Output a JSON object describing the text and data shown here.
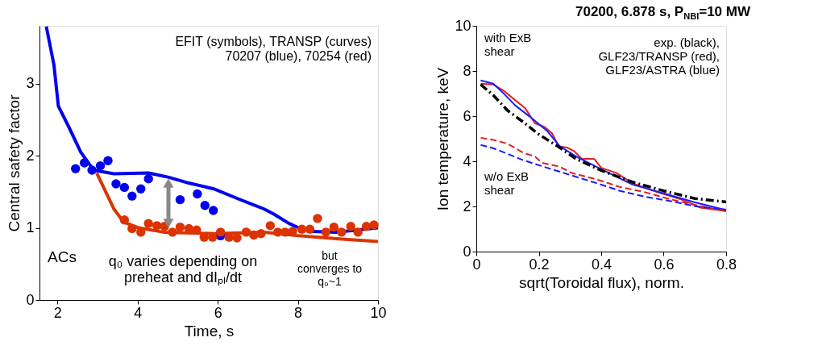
{
  "chart_data": [
    {
      "type": "line",
      "xlabel": "Time, s",
      "ylabel": "Central safety factor",
      "xlim": [
        1.55,
        10
      ],
      "ylim": [
        0,
        3.8
      ],
      "xticks": [
        2,
        4,
        6,
        8,
        10
      ],
      "yticks": [
        0,
        1,
        2,
        3
      ],
      "grid": false,
      "annotations": [
        "EFIT (symbols), TRANSP (curves)\n70207 (blue), 70254 (red)",
        "ACs",
        "q₀ varies depending on\npreheat and dIₚₗ/dt",
        "but\nconverges to\nq₀~1"
      ],
      "series": [
        {
          "type": "line",
          "color": "#0000ee",
          "x": [
            1.72,
            1.91,
            2.02,
            2.28,
            2.58,
            2.9,
            3.41,
            4.27,
            4.78,
            5.28,
            5.9,
            6.52,
            7.16,
            7.4,
            7.78,
            8.02,
            8.34,
            8.96,
            10
          ],
          "values": [
            3.79,
            3.26,
            2.69,
            2.4,
            2.05,
            1.8,
            1.75,
            1.76,
            1.7,
            1.62,
            1.54,
            1.4,
            1.26,
            1.19,
            1.06,
            1.0,
            0.95,
            0.94,
            1.0
          ]
        },
        {
          "type": "line",
          "color": "#dd3300",
          "x": [
            2.98,
            3.22,
            3.41,
            3.65,
            4.03,
            4.65,
            5.9,
            7.16,
            8.02,
            8.96,
            10
          ],
          "values": [
            1.76,
            1.48,
            1.26,
            1.08,
            1.0,
            0.94,
            0.92,
            0.94,
            0.89,
            0.85,
            0.81
          ]
        },
        {
          "type": "scatter",
          "marker": "circle",
          "color": "#0000ee",
          "x": [
            2.45,
            2.67,
            2.86,
            3.07,
            3.26,
            3.46,
            3.67,
            3.86,
            4.08,
            4.27,
            5.06,
            5.49,
            5.68,
            5.89,
            6.07
          ],
          "values": [
            1.82,
            1.9,
            1.8,
            1.86,
            1.93,
            1.61,
            1.56,
            1.44,
            1.54,
            1.68,
            1.39,
            1.47,
            1.31,
            1.24,
            0.89
          ]
        },
        {
          "type": "scatter",
          "marker": "circle",
          "color": "#dd3300",
          "x": [
            3.67,
            3.86,
            4.08,
            4.27,
            4.48,
            4.67,
            4.87,
            5.06,
            5.28,
            5.47,
            5.66,
            5.87,
            6.07,
            6.28,
            6.48,
            6.71,
            6.9,
            7.08,
            7.31,
            7.5,
            7.68,
            7.87,
            8.1,
            8.3,
            8.49,
            8.7,
            8.9,
            9.09,
            9.32,
            9.5,
            9.71,
            9.9
          ],
          "values": [
            1.11,
            0.99,
            0.94,
            1.06,
            1.03,
            1.02,
            0.94,
            1.01,
            0.99,
            0.97,
            0.87,
            0.87,
            0.94,
            0.87,
            0.86,
            0.94,
            0.9,
            0.92,
            1.03,
            0.94,
            0.94,
            0.95,
            0.98,
            0.98,
            1.13,
            0.94,
            1.01,
            0.94,
            1.02,
            0.94,
            1.02,
            1.04
          ]
        }
      ]
    },
    {
      "type": "line",
      "title": "70200, 6.878 s, P$_{NBI}$=10 MW",
      "xlabel": "sqrt(Toroidal flux), norm.",
      "ylabel": "Ion temperature, keV",
      "xlim": [
        0,
        0.8
      ],
      "ylim": [
        0,
        10
      ],
      "xticks": [
        0,
        0.2,
        0.4,
        0.6,
        0.8
      ],
      "yticks": [
        0,
        2,
        4,
        6,
        8,
        10
      ],
      "grid": false,
      "annotations": [
        "with ExB\nshear",
        "exp. (black),\nGLF23/TRANSP (red),\nGLF23/ASTRA (blue)",
        "w/o ExB\nshear"
      ],
      "series": [
        {
          "color": "#e02020",
          "line_style": "solid",
          "x": [
            0.014,
            0.054,
            0.085,
            0.125,
            0.156,
            0.188,
            0.22,
            0.243,
            0.263,
            0.29,
            0.314,
            0.338,
            0.354,
            0.378,
            0.4,
            0.449,
            0.5,
            0.58,
            0.66,
            0.717,
            0.8
          ],
          "values": [
            7.44,
            7.4,
            7.15,
            6.7,
            6.36,
            5.68,
            5.51,
            5.23,
            4.67,
            4.61,
            4.44,
            4.1,
            4.12,
            4.1,
            3.71,
            3.48,
            3.03,
            2.63,
            2.29,
            1.95,
            1.79
          ]
        },
        {
          "color": "#1a1aff",
          "line_style": "solid",
          "x": [
            0.014,
            0.054,
            0.085,
            0.125,
            0.172,
            0.227,
            0.267,
            0.32,
            0.4,
            0.5,
            0.6,
            0.7,
            0.8
          ],
          "values": [
            7.58,
            7.44,
            7.04,
            6.47,
            5.97,
            5.34,
            4.67,
            4.21,
            3.65,
            2.97,
            2.58,
            2.18,
            1.84
          ]
        },
        {
          "color": "#e02020",
          "line_style": "dashed",
          "x": [
            0.014,
            0.054,
            0.1,
            0.15,
            0.188,
            0.21,
            0.267,
            0.306,
            0.385,
            0.46,
            0.54,
            0.62,
            0.7,
            0.8
          ],
          "values": [
            5.04,
            4.95,
            4.78,
            4.38,
            4.21,
            3.93,
            3.76,
            3.48,
            3.2,
            2.86,
            2.63,
            2.32,
            2.07,
            1.79
          ]
        },
        {
          "color": "#1a1aff",
          "line_style": "dashed",
          "x": [
            0.014,
            0.054,
            0.1,
            0.15,
            0.227,
            0.306,
            0.385,
            0.46,
            0.54,
            0.62,
            0.7,
            0.8
          ],
          "values": [
            4.72,
            4.58,
            4.33,
            4.05,
            3.71,
            3.37,
            3.03,
            2.69,
            2.43,
            2.24,
            2.01,
            1.86
          ]
        },
        {
          "color": "#000000",
          "line_style": "dashdot",
          "x": [
            0.014,
            0.054,
            0.1,
            0.15,
            0.196,
            0.26,
            0.32,
            0.4,
            0.5,
            0.6,
            0.7,
            0.8
          ],
          "values": [
            7.4,
            6.93,
            6.25,
            5.74,
            5.23,
            4.67,
            4.1,
            3.59,
            3.08,
            2.69,
            2.35,
            2.2
          ]
        }
      ]
    }
  ]
}
